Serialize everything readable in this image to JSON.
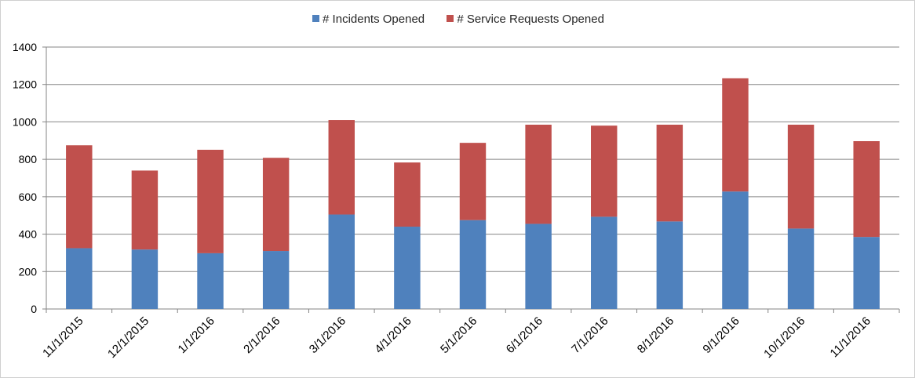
{
  "chart_data": {
    "type": "bar",
    "stacked": true,
    "title": "",
    "xlabel": "",
    "ylabel": "",
    "ylim": [
      0,
      1400
    ],
    "yticks": [
      0,
      200,
      400,
      600,
      800,
      1000,
      1200,
      1400
    ],
    "grid": true,
    "legend_position": "top-center",
    "categories": [
      "11/1/2015",
      "12/1/2015",
      "1/1/2016",
      "2/1/2016",
      "3/1/2016",
      "4/1/2016",
      "5/1/2016",
      "6/1/2016",
      "7/1/2016",
      "8/1/2016",
      "9/1/2016",
      "10/1/2016",
      "11/1/2016"
    ],
    "series": [
      {
        "name": "# Incidents Opened",
        "color": "#4f81bd",
        "values": [
          325,
          318,
          298,
          310,
          505,
          440,
          475,
          455,
          493,
          468,
          628,
          430,
          385
        ]
      },
      {
        "name": "# Service Requests Opened",
        "color": "#c0504d",
        "values": [
          550,
          422,
          553,
          498,
          505,
          343,
          413,
          530,
          487,
          517,
          605,
          555,
          512
        ]
      }
    ]
  }
}
